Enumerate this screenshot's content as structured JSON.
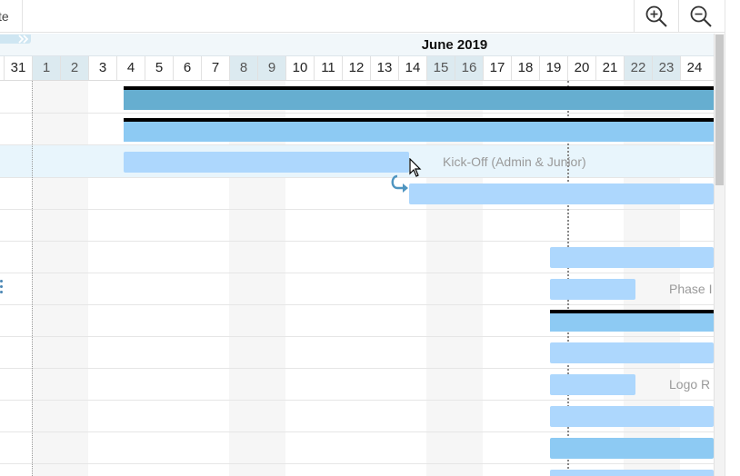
{
  "toolbar": {
    "left_fragment": "te",
    "zoom_in_icon": "zoom-in-icon",
    "zoom_out_icon": "zoom-out-icon"
  },
  "timeline": {
    "month": "June 2019",
    "days": [
      {
        "n": "31",
        "weekend": false
      },
      {
        "n": "1",
        "weekend": true
      },
      {
        "n": "2",
        "weekend": true
      },
      {
        "n": "3",
        "weekend": false
      },
      {
        "n": "4",
        "weekend": false
      },
      {
        "n": "5",
        "weekend": false
      },
      {
        "n": "6",
        "weekend": false
      },
      {
        "n": "7",
        "weekend": false
      },
      {
        "n": "8",
        "weekend": true
      },
      {
        "n": "9",
        "weekend": true
      },
      {
        "n": "10",
        "weekend": false
      },
      {
        "n": "11",
        "weekend": false
      },
      {
        "n": "12",
        "weekend": false
      },
      {
        "n": "13",
        "weekend": false
      },
      {
        "n": "14",
        "weekend": false
      },
      {
        "n": "15",
        "weekend": true
      },
      {
        "n": "16",
        "weekend": true
      },
      {
        "n": "17",
        "weekend": false
      },
      {
        "n": "18",
        "weekend": false
      },
      {
        "n": "19",
        "weekend": false
      },
      {
        "n": "20",
        "weekend": false
      },
      {
        "n": "21",
        "weekend": false
      },
      {
        "n": "22",
        "weekend": true
      },
      {
        "n": "23",
        "weekend": true
      },
      {
        "n": "24",
        "weekend": false
      }
    ]
  },
  "tasks": {
    "kickoff_label": "Kick-Off (Admin & Junior)",
    "phase_label": "Phase I",
    "logo_label": "Logo R"
  },
  "colors": {
    "summary_bar": "#66aed0",
    "parent_bar": "#8dcaf3",
    "task_bar": "#add7fd",
    "weekend_header": "#dceaf0"
  }
}
